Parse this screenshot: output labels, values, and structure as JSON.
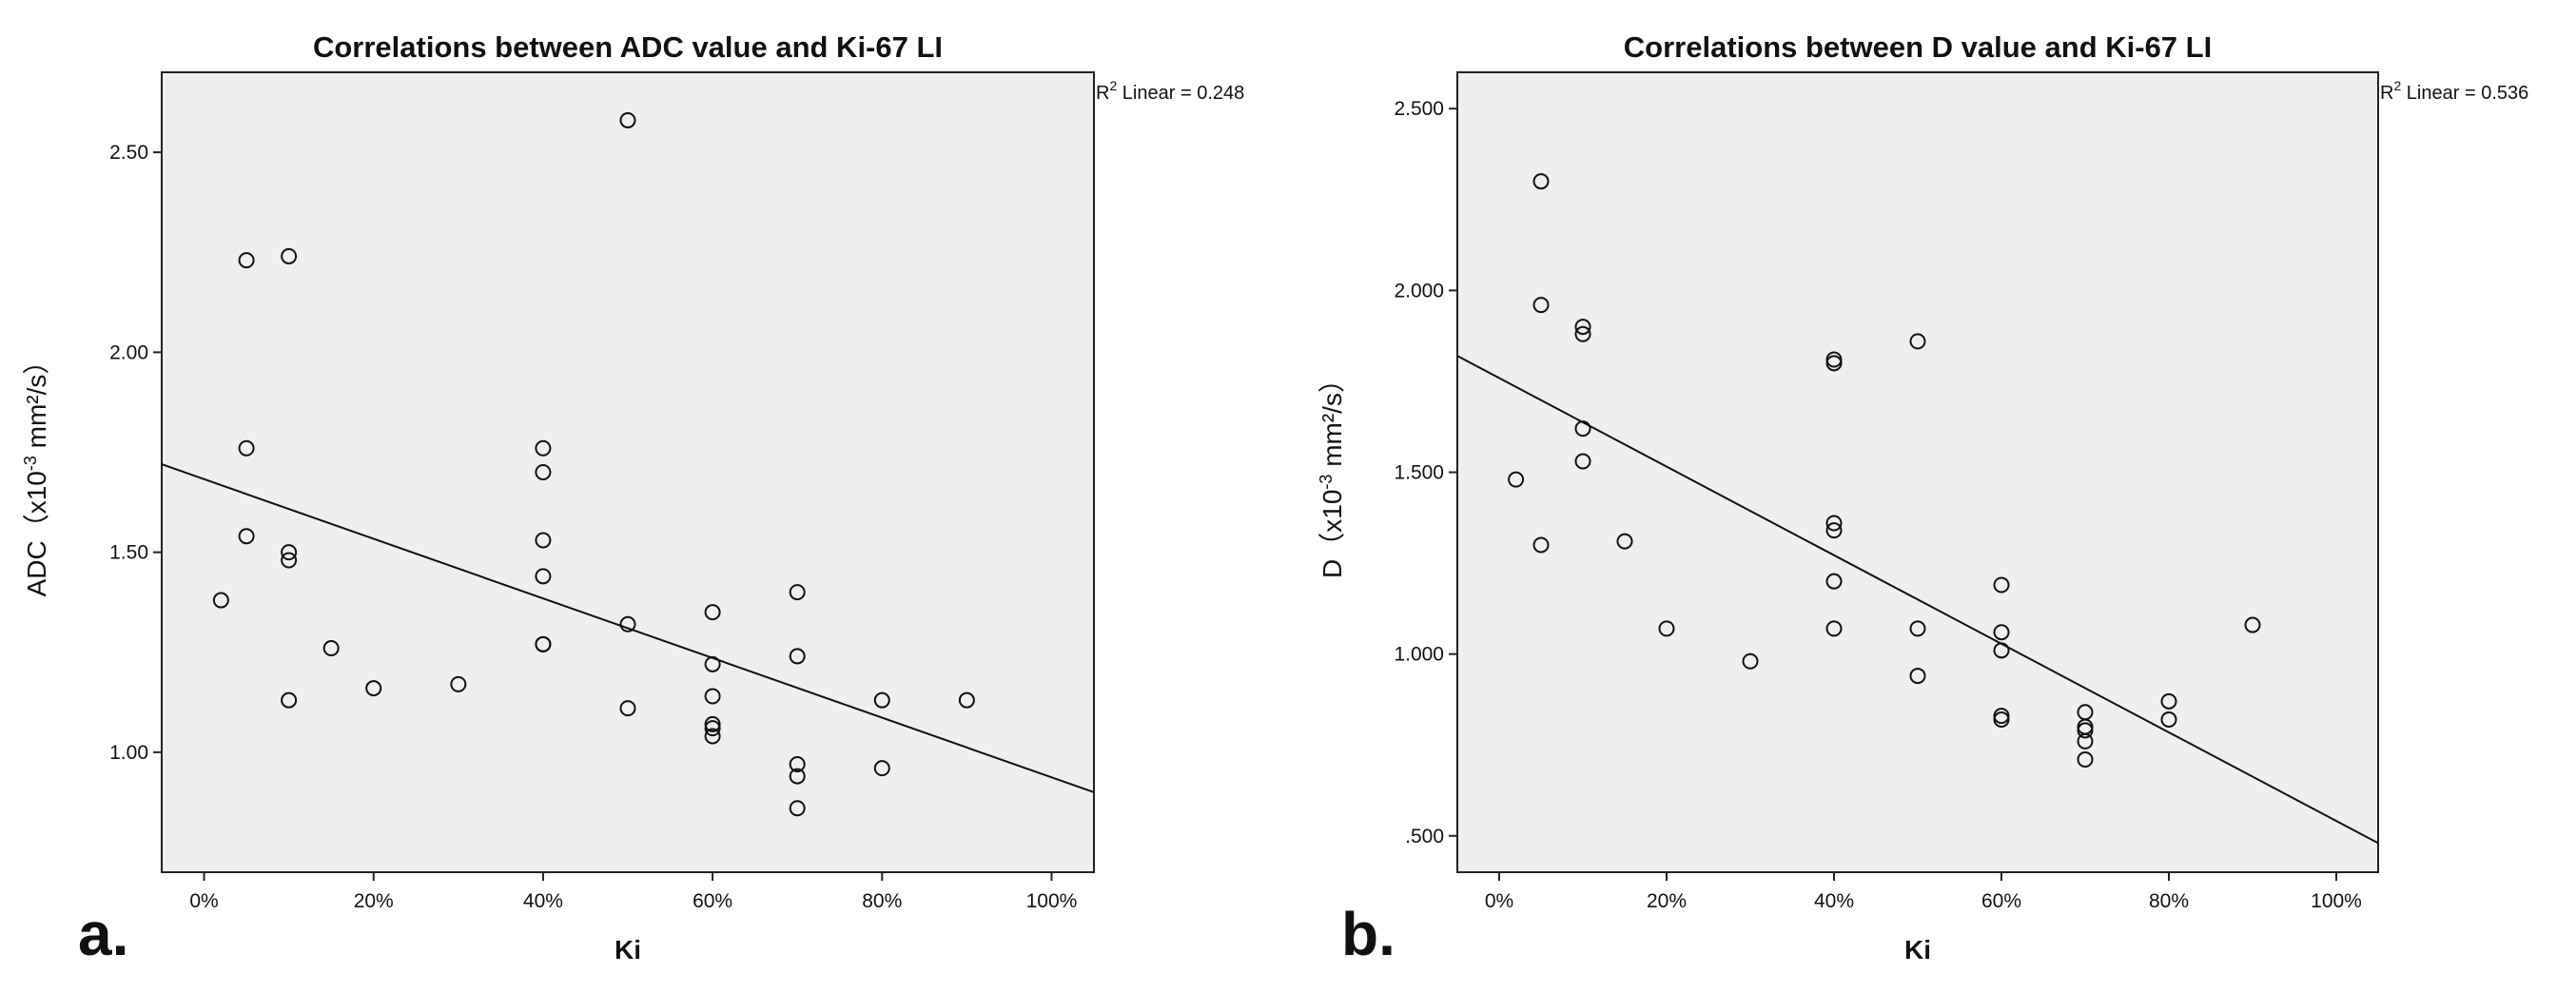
{
  "chart_data": [
    {
      "type": "scatter",
      "panel_label": "a.",
      "title": "Correlations between ADC  value and Ki-67 LI",
      "xlabel": "Ki",
      "ylabel_main": "ADC（x10",
      "ylabel_sup": "-3",
      "ylabel_tail": " mm²/s）",
      "xlim": [
        -5,
        105
      ],
      "ylim": [
        0.7,
        2.7
      ],
      "xticks": [
        0,
        20,
        40,
        60,
        80,
        100
      ],
      "xtick_labels": [
        "0%",
        "20%",
        "40%",
        "60%",
        "80%",
        "100%"
      ],
      "yticks": [
        1.0,
        1.5,
        2.0,
        2.5
      ],
      "ytick_labels": [
        "1.00",
        "1.50",
        "2.00",
        "2.50"
      ],
      "r2_prefix": "R",
      "r2_sup": "2",
      "r2_text": " Linear = 0.248",
      "fit_line": {
        "x": [
          -5,
          105
        ],
        "y": [
          1.72,
          0.9
        ]
      },
      "points": [
        {
          "x": 2,
          "y": 1.38
        },
        {
          "x": 5,
          "y": 2.23
        },
        {
          "x": 5,
          "y": 1.76
        },
        {
          "x": 5,
          "y": 1.54
        },
        {
          "x": 10,
          "y": 2.24
        },
        {
          "x": 10,
          "y": 1.5
        },
        {
          "x": 10,
          "y": 1.48
        },
        {
          "x": 10,
          "y": 1.13
        },
        {
          "x": 15,
          "y": 1.26
        },
        {
          "x": 20,
          "y": 1.16
        },
        {
          "x": 30,
          "y": 1.17
        },
        {
          "x": 40,
          "y": 1.76
        },
        {
          "x": 40,
          "y": 1.7
        },
        {
          "x": 40,
          "y": 1.53
        },
        {
          "x": 40,
          "y": 1.44
        },
        {
          "x": 40,
          "y": 1.27
        },
        {
          "x": 40,
          "y": 1.27
        },
        {
          "x": 50,
          "y": 2.58
        },
        {
          "x": 50,
          "y": 1.32
        },
        {
          "x": 50,
          "y": 1.11
        },
        {
          "x": 60,
          "y": 1.35
        },
        {
          "x": 60,
          "y": 1.22
        },
        {
          "x": 60,
          "y": 1.14
        },
        {
          "x": 60,
          "y": 1.07
        },
        {
          "x": 60,
          "y": 1.06
        },
        {
          "x": 60,
          "y": 1.04
        },
        {
          "x": 70,
          "y": 1.4
        },
        {
          "x": 70,
          "y": 1.24
        },
        {
          "x": 70,
          "y": 0.97
        },
        {
          "x": 70,
          "y": 0.94
        },
        {
          "x": 70,
          "y": 0.86
        },
        {
          "x": 80,
          "y": 1.13
        },
        {
          "x": 80,
          "y": 0.96
        },
        {
          "x": 90,
          "y": 1.13
        }
      ]
    },
    {
      "type": "scatter",
      "panel_label": "b.",
      "title": "Correlations between D value and Ki-67 LI",
      "xlabel": "Ki",
      "ylabel_main": "D（x10",
      "ylabel_sup": "-3",
      "ylabel_tail": " mm²/s）",
      "xlim": [
        -5,
        105
      ],
      "ylim": [
        0.4,
        2.6
      ],
      "xticks": [
        0,
        20,
        40,
        60,
        80,
        100
      ],
      "xtick_labels": [
        "0%",
        "20%",
        "40%",
        "60%",
        "80%",
        "100%"
      ],
      "yticks": [
        0.5,
        1.0,
        1.5,
        2.0,
        2.5
      ],
      "ytick_labels": [
        ".500",
        "1.000",
        "1.500",
        "2.000",
        "2.500"
      ],
      "r2_prefix": "R",
      "r2_sup": "2",
      "r2_text": " Linear = 0.536",
      "fit_line": {
        "x": [
          -5,
          105
        ],
        "y": [
          1.82,
          0.48
        ]
      },
      "points": [
        {
          "x": 2,
          "y": 1.48
        },
        {
          "x": 5,
          "y": 2.3
        },
        {
          "x": 5,
          "y": 1.96
        },
        {
          "x": 5,
          "y": 1.3
        },
        {
          "x": 10,
          "y": 1.9
        },
        {
          "x": 10,
          "y": 1.88
        },
        {
          "x": 10,
          "y": 1.62
        },
        {
          "x": 10,
          "y": 1.53
        },
        {
          "x": 15,
          "y": 1.31
        },
        {
          "x": 20,
          "y": 1.07
        },
        {
          "x": 30,
          "y": 0.98
        },
        {
          "x": 40,
          "y": 1.81
        },
        {
          "x": 40,
          "y": 1.8
        },
        {
          "x": 40,
          "y": 1.36
        },
        {
          "x": 40,
          "y": 1.34
        },
        {
          "x": 40,
          "y": 1.2
        },
        {
          "x": 40,
          "y": 1.07
        },
        {
          "x": 50,
          "y": 1.86
        },
        {
          "x": 50,
          "y": 1.07
        },
        {
          "x": 50,
          "y": 0.94
        },
        {
          "x": 60,
          "y": 1.19
        },
        {
          "x": 60,
          "y": 1.06
        },
        {
          "x": 60,
          "y": 1.01
        },
        {
          "x": 60,
          "y": 0.83
        },
        {
          "x": 60,
          "y": 0.82
        },
        {
          "x": 70,
          "y": 0.84
        },
        {
          "x": 70,
          "y": 0.8
        },
        {
          "x": 70,
          "y": 0.79
        },
        {
          "x": 70,
          "y": 0.76
        },
        {
          "x": 70,
          "y": 0.71
        },
        {
          "x": 80,
          "y": 0.87
        },
        {
          "x": 80,
          "y": 0.82
        },
        {
          "x": 90,
          "y": 1.08
        }
      ]
    }
  ]
}
